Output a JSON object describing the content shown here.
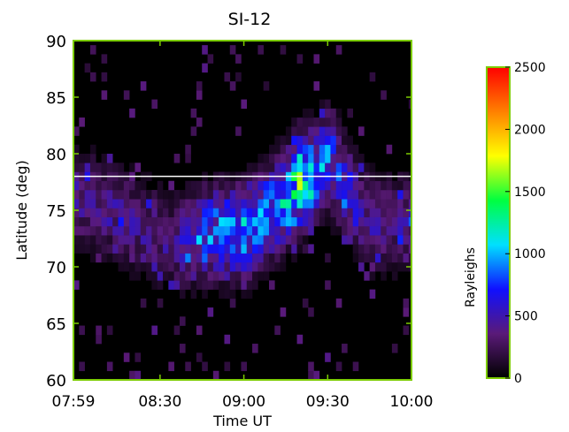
{
  "chart_data": {
    "type": "heatmap",
    "title": "SI-12",
    "xlabel": "Time UT",
    "ylabel": "Latitude (deg)",
    "xlim": [
      "07:59",
      "10:00"
    ],
    "ylim": [
      60,
      90
    ],
    "x_ticks": [
      "07:59",
      "08:30",
      "09:00",
      "09:30",
      "10:00"
    ],
    "y_ticks": [
      "60",
      "65",
      "70",
      "75",
      "80",
      "85",
      "90"
    ],
    "reference_line": {
      "latitude": 78,
      "color": "#ffffff"
    },
    "colorbar": {
      "label": "Rayleighs",
      "range": [
        0,
        2500
      ],
      "ticks": [
        "0",
        "500",
        "1000",
        "1500",
        "2000",
        "2500"
      ],
      "colormap": [
        "#000000",
        "#5a1a78",
        "#1010ff",
        "#00e0ff",
        "#00ff40",
        "#ffff00",
        "#ff8000",
        "#ff0000"
      ]
    },
    "frame_color": "#7ccc00",
    "intensity_band": {
      "description_points_time_lat_value": [
        [
          "08:05",
          76.0,
          500
        ],
        [
          "08:35",
          72.0,
          450
        ],
        [
          "08:47",
          73.0,
          900
        ],
        [
          "09:00",
          73.0,
          1100
        ],
        [
          "09:08",
          74.5,
          950
        ],
        [
          "09:15",
          76.0,
          1200
        ],
        [
          "09:20",
          77.5,
          1450
        ],
        [
          "09:25",
          78.0,
          1150
        ],
        [
          "09:30",
          79.5,
          900
        ],
        [
          "09:45",
          74.0,
          500
        ]
      ]
    }
  }
}
